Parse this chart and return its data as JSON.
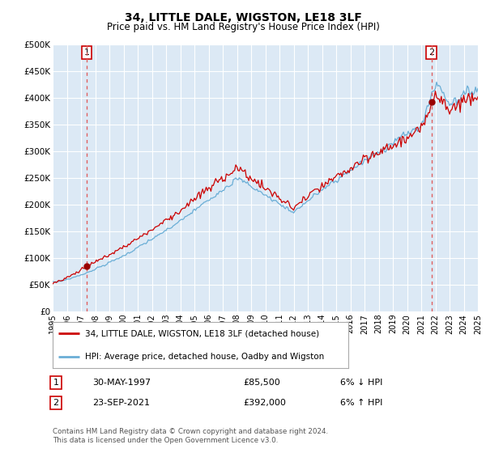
{
  "title": "34, LITTLE DALE, WIGSTON, LE18 3LF",
  "subtitle": "Price paid vs. HM Land Registry's House Price Index (HPI)",
  "background_color": "#ffffff",
  "plot_bg_color": "#dce9f5",
  "hpi_color": "#6aaed6",
  "price_color": "#cc0000",
  "marker_color": "#990000",
  "dashed_color": "#e06060",
  "sale1_x": 1997.41,
  "sale1_y": 85500,
  "sale2_x": 2021.73,
  "sale2_y": 392000,
  "xmin": 1995,
  "xmax": 2025,
  "ymin": 0,
  "ymax": 500000,
  "yticks": [
    0,
    50000,
    100000,
    150000,
    200000,
    250000,
    300000,
    350000,
    400000,
    450000,
    500000
  ],
  "ytick_labels": [
    "£0",
    "£50K",
    "£100K",
    "£150K",
    "£200K",
    "£250K",
    "£300K",
    "£350K",
    "£400K",
    "£450K",
    "£500K"
  ],
  "xticks": [
    1995,
    1996,
    1997,
    1998,
    1999,
    2000,
    2001,
    2002,
    2003,
    2004,
    2005,
    2006,
    2007,
    2008,
    2009,
    2010,
    2011,
    2012,
    2013,
    2014,
    2015,
    2016,
    2017,
    2018,
    2019,
    2020,
    2021,
    2022,
    2023,
    2024,
    2025
  ],
  "legend_label1": "34, LITTLE DALE, WIGSTON, LE18 3LF (detached house)",
  "legend_label2": "HPI: Average price, detached house, Oadby and Wigston",
  "annotation1_label": "1",
  "annotation2_label": "2",
  "table_row1": [
    "1",
    "30-MAY-1997",
    "£85,500",
    "6% ↓ HPI"
  ],
  "table_row2": [
    "2",
    "23-SEP-2021",
    "£392,000",
    "6% ↑ HPI"
  ],
  "footer": "Contains HM Land Registry data © Crown copyright and database right 2024.\nThis data is licensed under the Open Government Licence v3.0."
}
